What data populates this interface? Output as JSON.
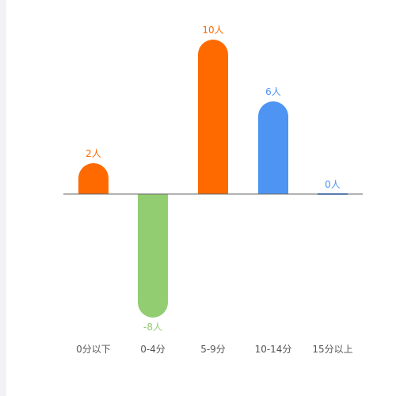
{
  "chart_data": {
    "type": "bar",
    "categories": [
      "0分以下",
      "0-4分",
      "5-9分",
      "10-14分",
      "15分以上"
    ],
    "values": [
      2,
      -8,
      10,
      6,
      0
    ],
    "data_labels": [
      "2人",
      "-8人",
      "10人",
      "6人",
      "0人"
    ],
    "colors": [
      "#ff6a00",
      "#93cd72",
      "#ff6a00",
      "#4d94f3",
      "#4d94f3"
    ],
    "label_colors": [
      "#ff6a00",
      "#93cd72",
      "#ff6a00",
      "#4d94f3",
      "#4d94f3"
    ],
    "axis_color": "#666666",
    "tick_label_color": "#555555",
    "title": "",
    "xlabel": "",
    "ylabel": "",
    "grid": false
  }
}
